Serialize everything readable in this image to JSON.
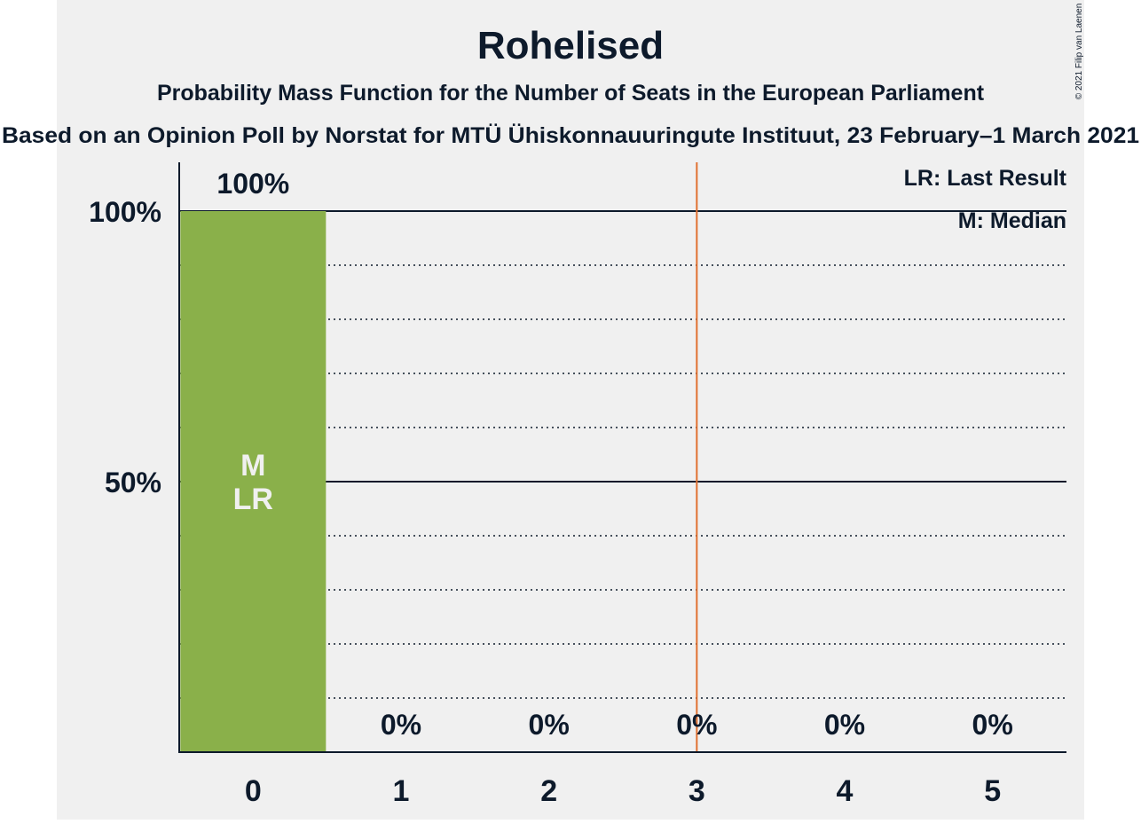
{
  "chart_data": {
    "type": "bar",
    "title": "Rohelised",
    "subtitle": "Probability Mass Function for the Number of Seats in the European Parliament",
    "subtitle2": "Based on an Opinion Poll by Norstat for MTÜ Ühiskonnauuringute Instituut, 23 February–1 March 2021",
    "copyright": "© 2021 Filip van Laenen",
    "categories": [
      "0",
      "1",
      "2",
      "3",
      "4",
      "5"
    ],
    "values": [
      100,
      0,
      0,
      0,
      0,
      0
    ],
    "value_labels": [
      "100%",
      "0%",
      "0%",
      "0%",
      "0%",
      "0%"
    ],
    "ylim": [
      0,
      100
    ],
    "yticks": [
      50,
      100
    ],
    "ytick_labels": [
      "50%",
      "100%"
    ],
    "minor_grid_step": 10,
    "bar_markers": {
      "0": [
        "M",
        "LR"
      ]
    },
    "majority_line_x": 3.5,
    "legend": [
      "LR: Last Result",
      "M: Median"
    ],
    "legend_position": "top-right",
    "colors": {
      "bar": "#8ab04a",
      "majority_line": "#e07030",
      "panel": "#f0f0f0",
      "text": "#0d1a2b",
      "marker_text": "#f0f0f0"
    }
  }
}
